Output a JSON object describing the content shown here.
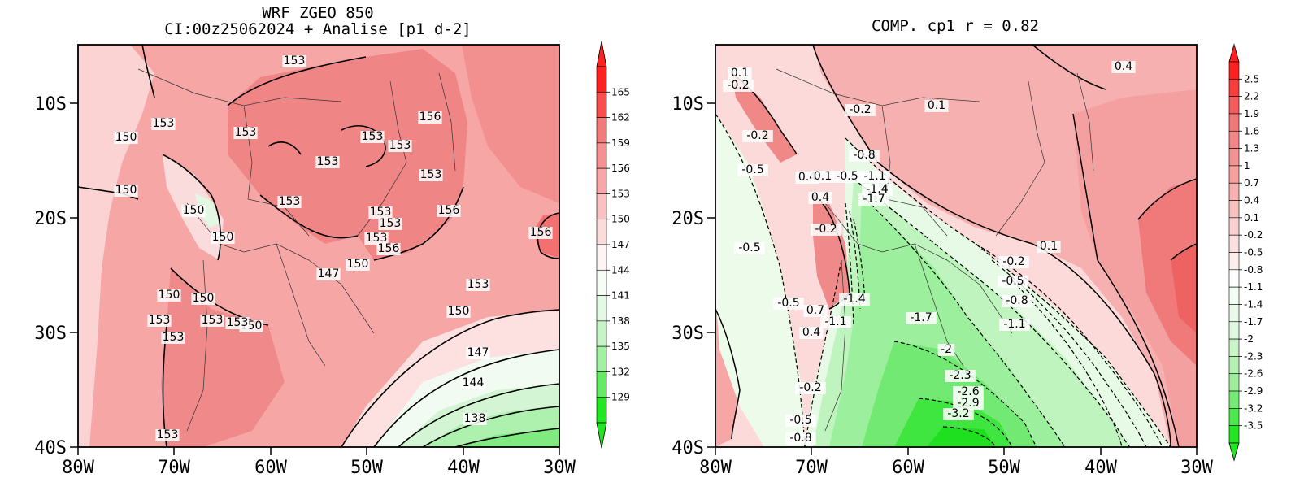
{
  "left_panel": {
    "title_line1": "WRF ZGEO 850",
    "title_line2": "CI:00z25062024 + Analise  [p1 d-2]",
    "colorbar_labels": [
      "165",
      "162",
      "159",
      "156",
      "153",
      "150",
      "147",
      "144",
      "141",
      "138",
      "135",
      "132",
      "129"
    ],
    "contour_labels": [
      "153",
      "153",
      "153",
      "150",
      "153",
      "153",
      "156",
      "153",
      "153",
      "150",
      "153",
      "150",
      "153",
      "153",
      "156",
      "150",
      "153",
      "156",
      "147",
      "150",
      "150",
      "150",
      "153",
      "153",
      "150",
      "153",
      "153",
      "153",
      "150",
      "147",
      "144",
      "138",
      "153",
      "156"
    ]
  },
  "right_panel": {
    "title": "COMP. cp1  r =  0.82",
    "colorbar_labels": [
      "2.5",
      "2.2",
      "1.9",
      "1.6",
      "1.3",
      "1",
      "0.7",
      "0.4",
      "0.1",
      "-0.2",
      "-0.5",
      "-0.8",
      "-1.1",
      "-1.4",
      "-1.7",
      "-2",
      "-2.3",
      "-2.6",
      "-2.9",
      "-3.2",
      "-3.5"
    ],
    "contour_labels": [
      "0.1",
      "-0.2",
      "0.4",
      "-0.2",
      "0.1",
      "-0.2",
      "-0.8",
      "-0.5",
      "0.4",
      "0.1",
      "-0.5",
      "-1.1",
      "-1.4",
      "-1.7",
      "0.4",
      "-0.2",
      "-0.5",
      "-0.2",
      "0.1",
      "-0.5",
      "-0.8",
      "-1.1",
      "-1.4",
      "-1.7",
      "-0.5",
      "0.7",
      "-1.1",
      "0.4",
      "-2",
      "-2.3",
      "-2.6",
      "-2.9",
      "-3.2",
      "-0.2",
      "-0.5",
      "-0.8"
    ]
  },
  "axes": {
    "x_ticks": [
      "80W",
      "70W",
      "60W",
      "50W",
      "40W",
      "30W"
    ],
    "y_ticks": [
      "10S",
      "20S",
      "30S",
      "40S"
    ]
  },
  "colors": {
    "red_strong": "#ff2020",
    "red_mid": "#f07878",
    "red_light": "#f6a0a0",
    "pink": "#fbd0d0",
    "green_light": "#dff8df",
    "green_mid": "#9eee9e",
    "green_strong": "#22e622"
  }
}
